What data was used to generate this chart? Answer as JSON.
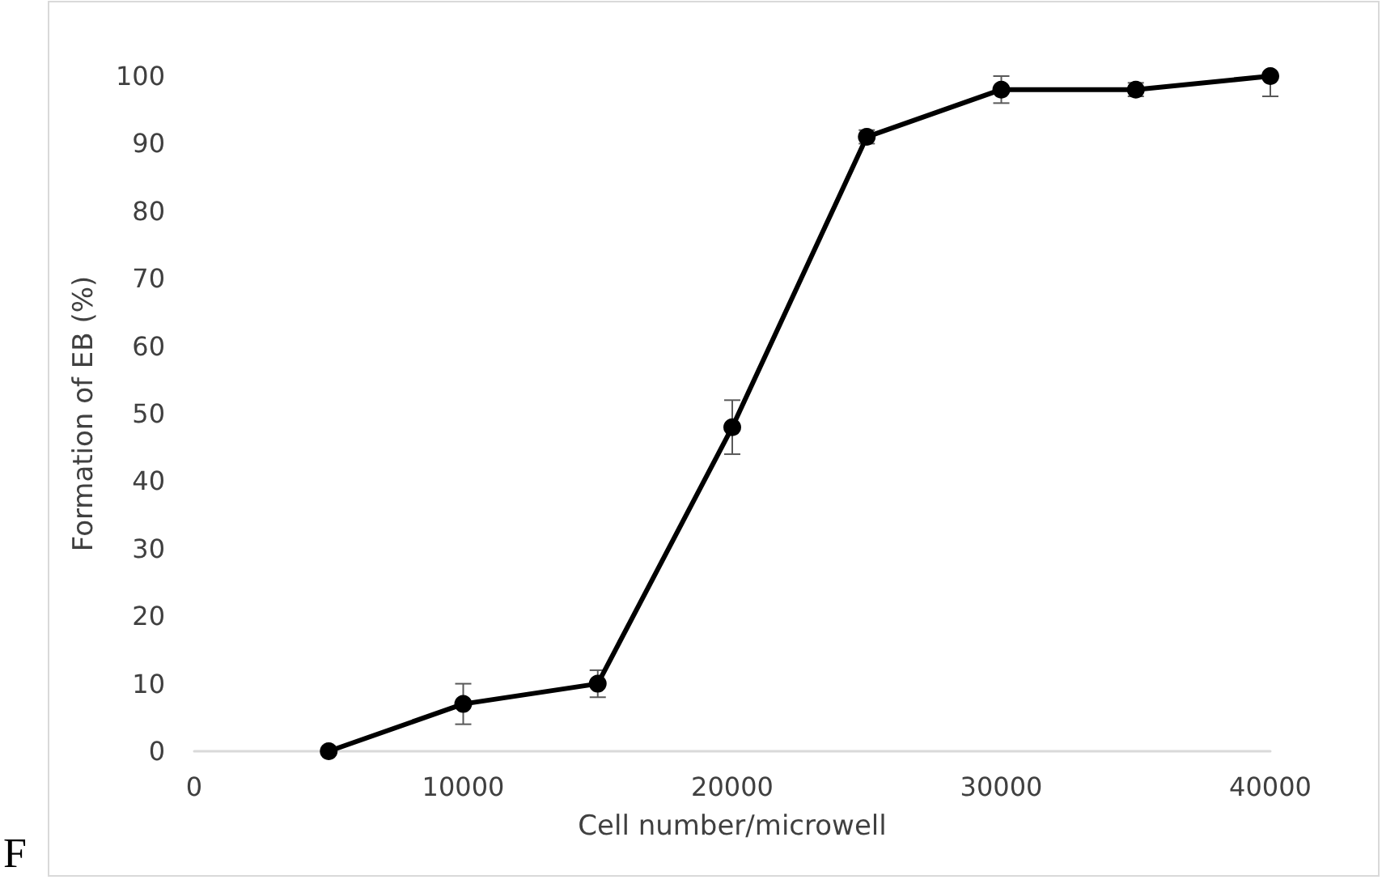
{
  "chart_data": {
    "type": "line",
    "xlabel": "Cell number/microwell",
    "ylabel": "Formation of EB (%)",
    "x": [
      5000,
      10000,
      15000,
      20000,
      25000,
      30000,
      35000,
      40000
    ],
    "series": [
      {
        "color": "#000000",
        "values": [
          0,
          7,
          10,
          48,
          91,
          98,
          98,
          100
        ],
        "errors": [
          null,
          3,
          2,
          4,
          1,
          2,
          1,
          [
            97,
            100
          ]
        ]
      }
    ],
    "xlim": [
      0,
      40000
    ],
    "xticks": [
      0,
      10000,
      20000,
      30000,
      40000
    ],
    "ylim": [
      0,
      100
    ],
    "yticks": [
      0,
      10,
      20,
      30,
      40,
      50,
      60,
      70,
      80,
      90,
      100
    ],
    "grid": false,
    "marker": "circle",
    "line_style": "solid",
    "annotations": [
      "F"
    ]
  }
}
